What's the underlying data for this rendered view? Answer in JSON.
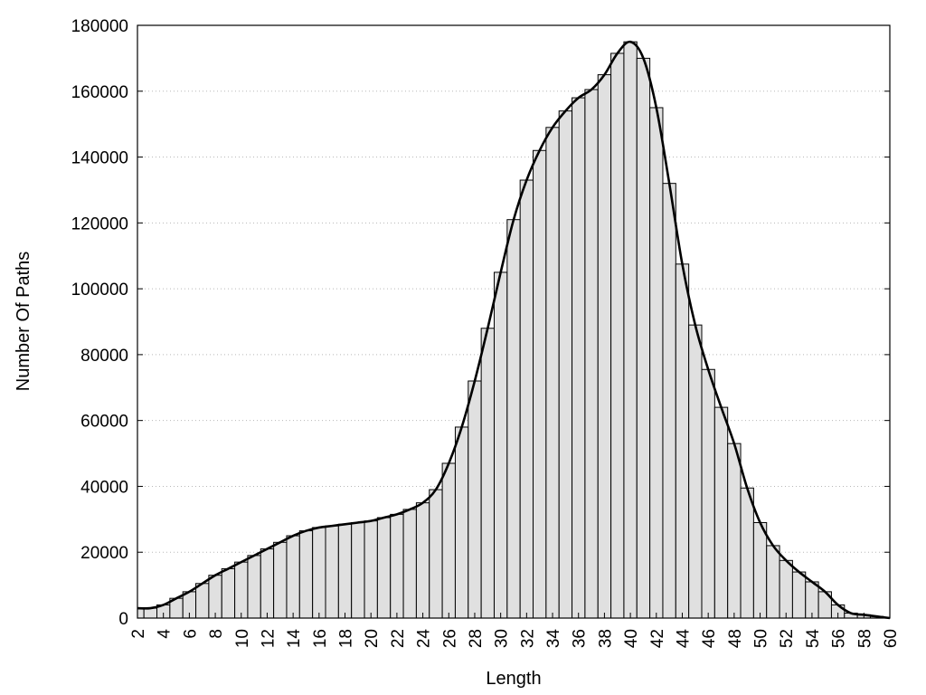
{
  "chart_data": {
    "type": "bar",
    "title": "",
    "xlabel": "Length",
    "ylabel": "Number Of Paths",
    "x": [
      2,
      3,
      4,
      5,
      6,
      7,
      8,
      9,
      10,
      11,
      12,
      13,
      14,
      15,
      16,
      17,
      18,
      19,
      20,
      21,
      22,
      23,
      24,
      25,
      26,
      27,
      28,
      29,
      30,
      31,
      32,
      33,
      34,
      35,
      36,
      37,
      38,
      39,
      40,
      41,
      42,
      43,
      44,
      45,
      46,
      47,
      48,
      49,
      50,
      51,
      52,
      53,
      54,
      55,
      56,
      57,
      58,
      59,
      60
    ],
    "values": [
      3000,
      3000,
      4000,
      6000,
      8000,
      10500,
      13000,
      15000,
      17000,
      19000,
      21000,
      23000,
      25000,
      26500,
      27500,
      28000,
      28500,
      29000,
      29500,
      30500,
      31500,
      33000,
      35000,
      39000,
      47000,
      58000,
      72000,
      88000,
      105000,
      121000,
      133000,
      142000,
      149000,
      154000,
      158000,
      160500,
      165000,
      171500,
      175000,
      170000,
      155000,
      132000,
      107500,
      89000,
      75500,
      64000,
      53000,
      39500,
      29000,
      22000,
      17500,
      14000,
      11000,
      8000,
      4000,
      1500,
      1000,
      500,
      0
    ],
    "xticks": [
      2,
      4,
      6,
      8,
      10,
      12,
      14,
      16,
      18,
      20,
      22,
      24,
      26,
      28,
      30,
      32,
      34,
      36,
      38,
      40,
      42,
      44,
      46,
      48,
      50,
      52,
      54,
      56,
      58,
      60
    ],
    "yticks": [
      0,
      20000,
      40000,
      60000,
      80000,
      100000,
      120000,
      140000,
      160000,
      180000
    ],
    "xlim": [
      2,
      60
    ],
    "ylim": [
      0,
      180000
    ],
    "grid": "y-dotted",
    "curve": true
  }
}
